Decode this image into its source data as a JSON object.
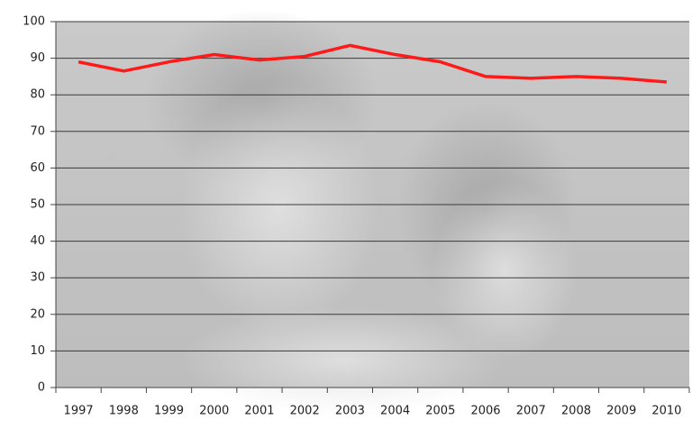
{
  "chart_data": {
    "type": "line",
    "categories": [
      "1997",
      "1998",
      "1999",
      "2000",
      "2001",
      "2002",
      "2003",
      "2004",
      "2005",
      "2006",
      "2007",
      "2008",
      "2009",
      "2010"
    ],
    "series": [
      {
        "color": "#ff1a1a",
        "values": [
          89,
          86.5,
          89,
          91,
          89.5,
          90.5,
          93.5,
          91,
          89,
          85,
          84.5,
          85,
          84.5,
          83.5
        ]
      }
    ],
    "ylim": [
      0,
      100
    ],
    "yticks": [
      0,
      10,
      20,
      30,
      40,
      50,
      60,
      70,
      80,
      90,
      100
    ],
    "grid": true
  }
}
